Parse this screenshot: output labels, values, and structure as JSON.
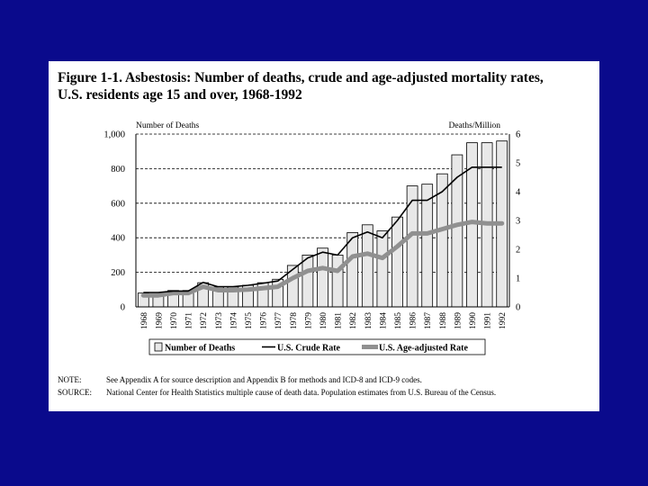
{
  "figure": {
    "title_line1": "Figure 1-1. Asbestosis: Number of deaths, crude and age-adjusted mortality rates,",
    "title_line2": "U.S. residents age 15 and over, 1968-1992",
    "note_label": "NOTE:",
    "note_text": "See Appendix A for source description and Appendix B for methods and ICD-8 and ICD-9 codes.",
    "source_label": "SOURCE:",
    "source_text": "National Center for Health Statistics multiple cause of death data. Population estimates from U.S. Bureau of the Census."
  },
  "colors": {
    "background": "#0a0a8c",
    "card": "#ffffff",
    "bar_fill": "#e8e8e8",
    "crude_line": "#000000",
    "adjusted_line": "#909090"
  },
  "chart_data": {
    "type": "bar",
    "title": "Asbestosis: Number of deaths, crude and age-adjusted mortality rates, U.S. residents age 15 and over, 1968-1992",
    "categories": [
      "1968",
      "1969",
      "1970",
      "1971",
      "1972",
      "1973",
      "1974",
      "1975",
      "1976",
      "1977",
      "1978",
      "1979",
      "1980",
      "1981",
      "1982",
      "1983",
      "1984",
      "1985",
      "1986",
      "1987",
      "1988",
      "1989",
      "1990",
      "1991",
      "1992"
    ],
    "series": [
      {
        "name": "Number of Deaths",
        "axis": "left",
        "kind": "bar",
        "values": [
          80,
          75,
          95,
          95,
          140,
          115,
          115,
          125,
          140,
          160,
          240,
          300,
          340,
          300,
          430,
          475,
          440,
          520,
          700,
          710,
          770,
          880,
          950,
          950,
          960
        ]
      },
      {
        "name": "U.S. Crude Rate",
        "axis": "right",
        "kind": "line",
        "values": [
          0.5,
          0.5,
          0.55,
          0.55,
          0.85,
          0.7,
          0.7,
          0.75,
          0.82,
          0.9,
          1.3,
          1.7,
          1.9,
          1.8,
          2.4,
          2.6,
          2.4,
          3.0,
          3.7,
          3.7,
          4.0,
          4.5,
          4.85,
          4.85,
          4.85
        ]
      },
      {
        "name": "U.S. Age-adjusted Rate",
        "axis": "right",
        "kind": "line",
        "values": [
          0.4,
          0.4,
          0.48,
          0.48,
          0.7,
          0.58,
          0.58,
          0.6,
          0.65,
          0.7,
          1.0,
          1.25,
          1.35,
          1.25,
          1.75,
          1.85,
          1.7,
          2.1,
          2.55,
          2.55,
          2.7,
          2.85,
          2.95,
          2.9,
          2.9
        ]
      }
    ],
    "left_axis": {
      "label": "Number of Deaths",
      "ylim": [
        0,
        1000
      ],
      "ticks": [
        0,
        200,
        400,
        600,
        800,
        1000
      ],
      "tick_labels": [
        "0",
        "200",
        "400",
        "600",
        "800",
        "1,000"
      ]
    },
    "right_axis": {
      "label": "Deaths/Million",
      "ylim": [
        0,
        6
      ],
      "ticks": [
        0,
        1,
        2,
        3,
        4,
        5,
        6
      ],
      "tick_labels": [
        "0",
        "1",
        "2",
        "3",
        "4",
        "5",
        "6"
      ]
    },
    "grid": "horizontal dashed",
    "legend": [
      "Number of Deaths",
      "U.S. Crude Rate",
      "U.S. Age-adjusted Rate"
    ],
    "legend_position": "bottom"
  }
}
